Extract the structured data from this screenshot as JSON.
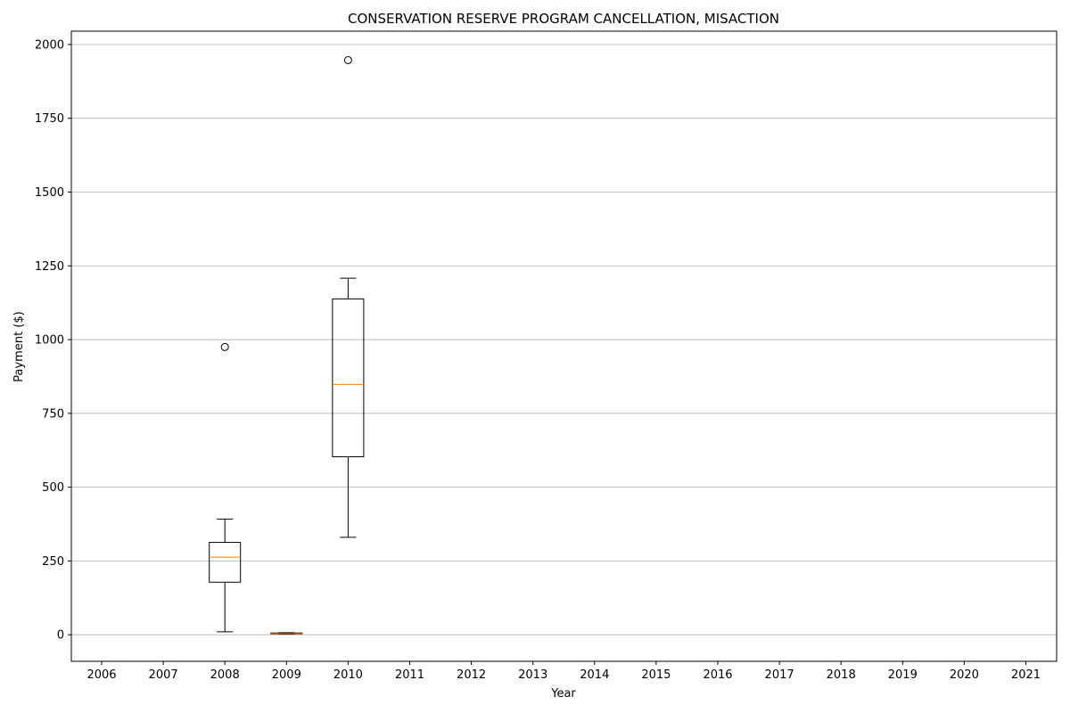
{
  "chart_data": {
    "type": "box",
    "title": "CONSERVATION RESERVE PROGRAM CANCELLATION, MISACTION",
    "xlabel": "Year",
    "ylabel": "Payment ($)",
    "ylim": [
      -90,
      2045
    ],
    "yticks": [
      0,
      250,
      500,
      750,
      1000,
      1250,
      1500,
      1750,
      2000
    ],
    "grid": "y",
    "categories": [
      "2006",
      "2007",
      "2008",
      "2009",
      "2010",
      "2011",
      "2012",
      "2013",
      "2014",
      "2015",
      "2016",
      "2017",
      "2018",
      "2019",
      "2020",
      "2021"
    ],
    "boxes": [
      {
        "category": "2008",
        "whisker_low": 10,
        "q1": 178,
        "median": 263,
        "q3": 313,
        "whisker_high": 392,
        "outliers": [
          975
        ]
      },
      {
        "category": "2009",
        "whisker_low": 2,
        "q1": 3,
        "median": 4,
        "q3": 6,
        "whisker_high": 7,
        "outliers": []
      },
      {
        "category": "2010",
        "whisker_low": 330,
        "q1": 603,
        "median": 848,
        "q3": 1138,
        "whisker_high": 1208,
        "outliers": [
          1947
        ]
      }
    ],
    "colors": {
      "box": "#000000",
      "median": "#ff7f0e",
      "grid": "#b0b0b0"
    }
  }
}
